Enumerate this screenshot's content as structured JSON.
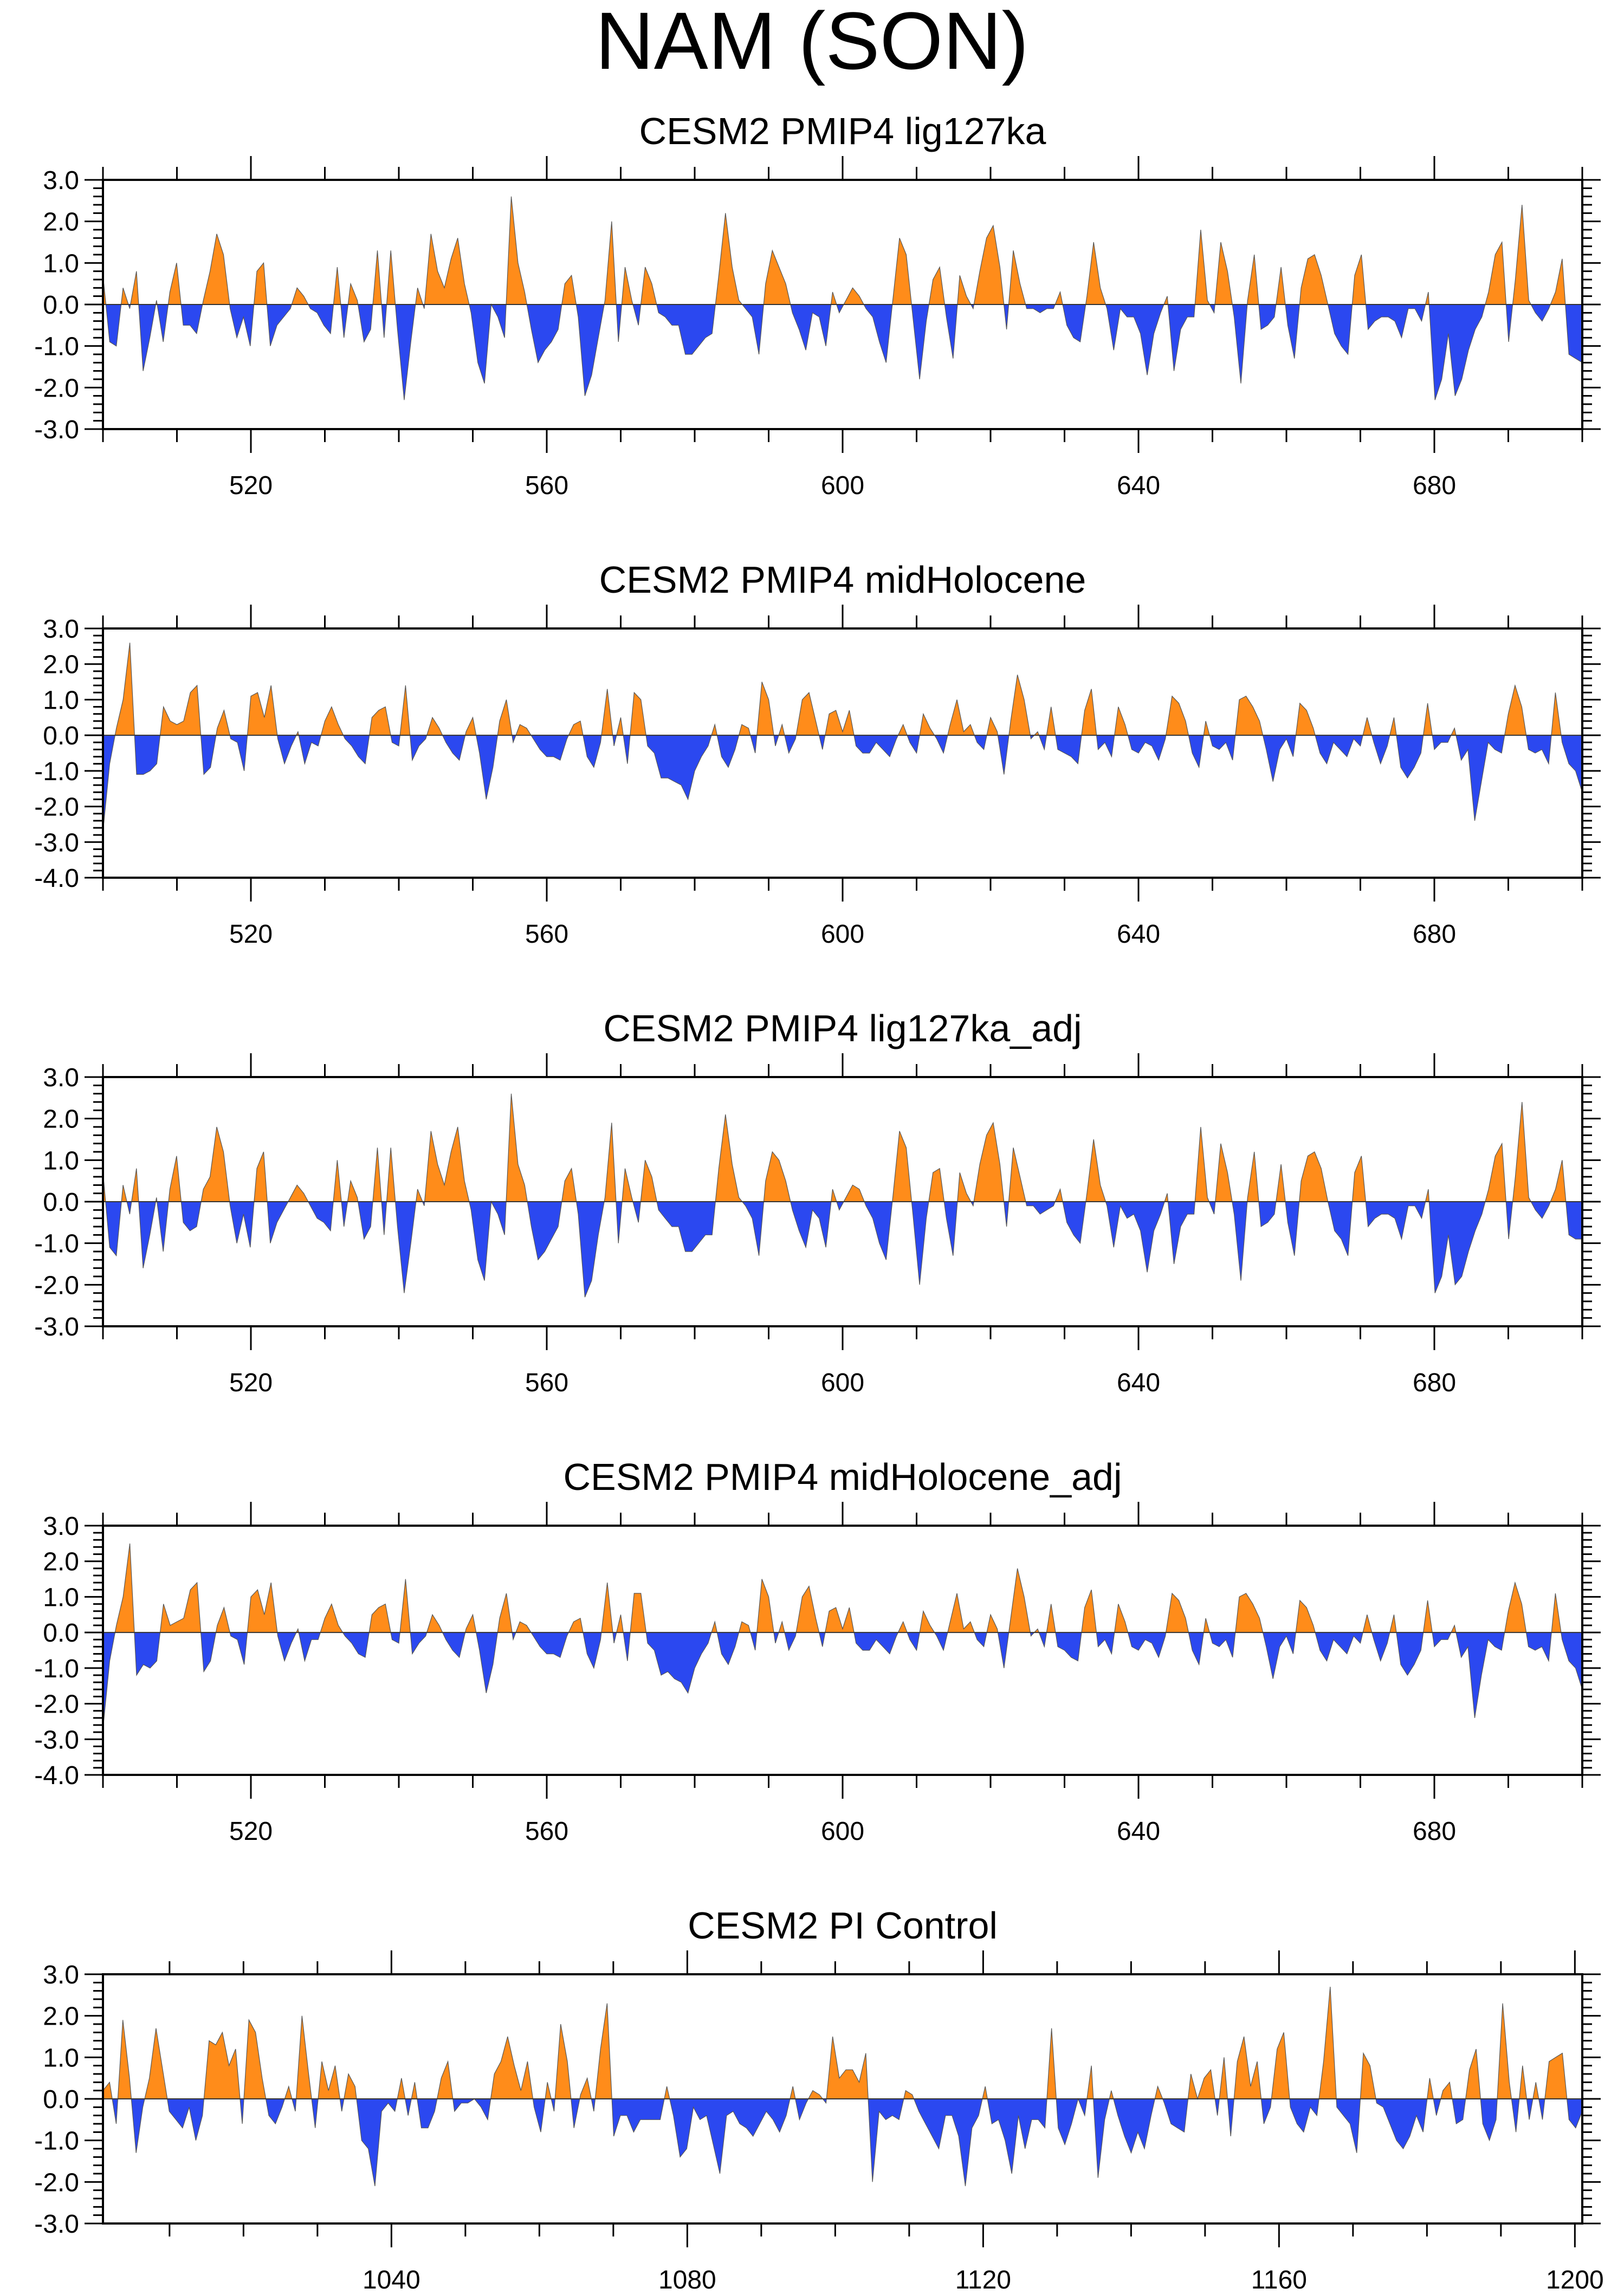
{
  "title": "NAM (SON)",
  "colors": {
    "positive": "#ff8c1a",
    "negative": "#2b48f0",
    "axis": "#000000"
  },
  "chart_data": [
    {
      "type": "area",
      "title": "CESM2 PMIP4 lig127ka",
      "xlim": [
        500,
        700
      ],
      "ylim": [
        -3,
        3
      ],
      "xticks": [
        520,
        560,
        600,
        640,
        680
      ],
      "xtick_labels": [
        "520",
        "560",
        "600",
        "640",
        "680"
      ],
      "yticks": [
        -3,
        -2,
        -1,
        0,
        1,
        2,
        3
      ],
      "ytick_labels": [
        "-3.0",
        "-2.0",
        "-1.0",
        "0.0",
        "1.0",
        "2.0",
        "3.0"
      ],
      "x_start": 500,
      "values": [
        0.7,
        -0.9,
        -1.0,
        0.4,
        -0.1,
        0.8,
        -1.6,
        -0.8,
        0.1,
        -0.9,
        0.3,
        1.0,
        -0.5,
        -0.5,
        -0.7,
        0.1,
        0.8,
        1.7,
        1.2,
        -0.1,
        -0.8,
        -0.3,
        -1.0,
        0.8,
        1.0,
        -1.0,
        -0.5,
        -0.3,
        -0.1,
        0.4,
        0.2,
        -0.1,
        -0.2,
        -0.5,
        -0.7,
        0.9,
        -0.8,
        0.5,
        0.1,
        -0.9,
        -0.6,
        1.3,
        -0.8,
        1.3,
        -0.6,
        -2.3,
        -0.9,
        0.4,
        -0.1,
        1.7,
        0.8,
        0.4,
        1.1,
        1.6,
        0.5,
        -0.2,
        -1.4,
        -1.9,
        0.0,
        -0.3,
        -0.8,
        2.6,
        1.0,
        0.3,
        -0.6,
        -1.4,
        -1.1,
        -0.9,
        -0.6,
        0.5,
        0.7,
        -0.3,
        -2.2,
        -1.7,
        -0.8,
        0.1,
        2.0,
        -0.9,
        0.9,
        0.1,
        -0.5,
        0.9,
        0.5,
        -0.2,
        -0.3,
        -0.5,
        -0.5,
        -1.2,
        -1.2,
        -1.0,
        -0.8,
        -0.7,
        0.7,
        2.2,
        0.9,
        0.1,
        -0.1,
        -0.3,
        -1.2,
        0.5,
        1.3,
        0.9,
        0.5,
        -0.2,
        -0.6,
        -1.1,
        -0.2,
        -0.3,
        -1.0,
        0.3,
        -0.2,
        0.1,
        0.4,
        0.2,
        -0.1,
        -0.3,
        -0.9,
        -1.4,
        0.1,
        1.6,
        1.2,
        -0.3,
        -1.8,
        -0.4,
        0.6,
        0.9,
        -0.3,
        -1.3,
        0.7,
        0.2,
        -0.1,
        0.8,
        1.6,
        1.9,
        0.9,
        -0.6,
        1.3,
        0.5,
        -0.1,
        -0.1,
        -0.2,
        -0.1,
        -0.1,
        0.3,
        -0.5,
        -0.8,
        -0.9,
        0.2,
        1.5,
        0.4,
        -0.1,
        -1.1,
        -0.1,
        -0.3,
        -0.3,
        -0.7,
        -1.7,
        -0.7,
        -0.2,
        0.2,
        -1.6,
        -0.6,
        -0.3,
        -0.3,
        1.8,
        0.1,
        -0.2,
        1.5,
        0.8,
        -0.3,
        -1.9,
        0.1,
        1.2,
        -0.6,
        -0.5,
        -0.3,
        0.9,
        -0.5,
        -1.3,
        0.4,
        1.1,
        1.2,
        0.7,
        0.0,
        -0.7,
        -1.0,
        -1.2,
        0.7,
        1.2,
        -0.6,
        -0.4,
        -0.3,
        -0.3,
        -0.4,
        -0.8,
        -0.1,
        -0.1,
        -0.4,
        0.3,
        -2.3,
        -1.8,
        -0.7,
        -2.2,
        -1.8,
        -1.1,
        -0.6,
        -0.3,
        0.3,
        1.2,
        1.5,
        -0.9,
        0.6,
        2.4,
        0.1,
        -0.2,
        -0.4,
        -0.1,
        0.3,
        1.1,
        -1.2,
        -1.3,
        -1.4
      ]
    },
    {
      "type": "area",
      "title": "CESM2 PMIP4 midHolocene",
      "xlim": [
        500,
        700
      ],
      "ylim": [
        -4,
        3
      ],
      "xticks": [
        520,
        560,
        600,
        640,
        680
      ],
      "xtick_labels": [
        "520",
        "560",
        "600",
        "640",
        "680"
      ],
      "yticks": [
        -4,
        -3,
        -2,
        -1,
        0,
        1,
        2,
        3
      ],
      "ytick_labels": [
        "-4.0",
        "-3.0",
        "-2.0",
        "-1.0",
        "0.0",
        "1.0",
        "2.0",
        "3.0"
      ],
      "x_start": 500,
      "values": [
        -2.7,
        -0.8,
        0.2,
        1.0,
        2.6,
        -1.1,
        -1.1,
        -1.0,
        -0.8,
        0.8,
        0.4,
        0.3,
        0.4,
        1.2,
        1.4,
        -1.1,
        -0.9,
        0.2,
        0.7,
        -0.1,
        -0.2,
        -1.0,
        1.1,
        1.2,
        0.5,
        1.4,
        -0.1,
        -0.8,
        -0.3,
        0.1,
        -0.8,
        -0.2,
        -0.3,
        0.4,
        0.8,
        0.3,
        -0.1,
        -0.3,
        -0.6,
        -0.8,
        0.5,
        0.7,
        0.8,
        -0.2,
        -0.3,
        1.4,
        -0.7,
        -0.3,
        -0.1,
        0.5,
        0.2,
        -0.2,
        -0.5,
        -0.7,
        0.1,
        0.5,
        -0.5,
        -1.8,
        -0.9,
        0.4,
        1.0,
        -0.2,
        0.3,
        0.2,
        -0.1,
        -0.4,
        -0.6,
        -0.6,
        -0.7,
        -0.1,
        0.3,
        0.4,
        -0.6,
        -0.9,
        -0.2,
        1.3,
        -0.3,
        0.5,
        -0.8,
        1.2,
        1.0,
        -0.3,
        -0.5,
        -1.2,
        -1.2,
        -1.3,
        -1.4,
        -1.8,
        -1.0,
        -0.6,
        -0.3,
        0.3,
        -0.6,
        -0.9,
        -0.4,
        0.3,
        0.2,
        -0.5,
        1.5,
        1.0,
        -0.3,
        0.3,
        -0.5,
        -0.1,
        1.0,
        1.2,
        0.4,
        -0.4,
        0.6,
        0.7,
        0.1,
        0.7,
        -0.3,
        -0.5,
        -0.5,
        -0.2,
        -0.4,
        -0.6,
        -0.1,
        0.3,
        -0.2,
        -0.5,
        0.6,
        0.2,
        -0.1,
        -0.5,
        0.3,
        1.0,
        0.1,
        0.3,
        -0.2,
        -0.4,
        0.5,
        0.1,
        -1.1,
        0.4,
        1.7,
        1.0,
        -0.1,
        0.1,
        -0.4,
        0.8,
        -0.4,
        -0.5,
        -0.6,
        -0.8,
        0.7,
        1.3,
        -0.4,
        -0.2,
        -0.6,
        0.8,
        0.3,
        -0.4,
        -0.5,
        -0.2,
        -0.3,
        -0.7,
        -0.1,
        1.1,
        0.9,
        0.4,
        -0.5,
        -0.9,
        0.4,
        -0.3,
        -0.4,
        -0.2,
        -0.7,
        1.0,
        1.1,
        0.8,
        0.4,
        -0.4,
        -1.3,
        -0.4,
        -0.1,
        -0.6,
        0.9,
        0.7,
        0.2,
        -0.5,
        -0.8,
        -0.2,
        -0.4,
        -0.6,
        -0.1,
        -0.3,
        0.5,
        -0.2,
        -0.8,
        -0.3,
        0.5,
        -0.9,
        -1.2,
        -0.9,
        -0.5,
        0.9,
        -0.4,
        -0.2,
        -0.2,
        0.2,
        -0.7,
        -0.4,
        -2.4,
        -1.3,
        -0.2,
        -0.4,
        -0.5,
        0.6,
        1.4,
        0.8,
        -0.4,
        -0.5,
        -0.4,
        -0.8,
        1.2,
        -0.2,
        -0.8,
        -1.0,
        -1.6
      ]
    },
    {
      "type": "area",
      "title": "CESM2 PMIP4 lig127ka_adj",
      "xlim": [
        500,
        700
      ],
      "ylim": [
        -3,
        3
      ],
      "xticks": [
        520,
        560,
        600,
        640,
        680
      ],
      "xtick_labels": [
        "520",
        "560",
        "600",
        "640",
        "680"
      ],
      "yticks": [
        -3,
        -2,
        -1,
        0,
        1,
        2,
        3
      ],
      "ytick_labels": [
        "-3.0",
        "-2.0",
        "-1.0",
        "0.0",
        "1.0",
        "2.0",
        "3.0"
      ],
      "x_start": 500,
      "values": [
        0.7,
        -1.1,
        -1.3,
        0.4,
        -0.3,
        0.8,
        -1.6,
        -0.8,
        0.1,
        -1.2,
        0.3,
        1.1,
        -0.5,
        -0.7,
        -0.6,
        0.3,
        0.6,
        1.8,
        1.2,
        -0.1,
        -1.0,
        -0.3,
        -1.1,
        0.8,
        1.2,
        -1.0,
        -0.5,
        -0.2,
        0.1,
        0.4,
        0.2,
        -0.1,
        -0.4,
        -0.5,
        -0.7,
        1.0,
        -0.6,
        0.5,
        0.1,
        -0.9,
        -0.6,
        1.3,
        -0.8,
        1.3,
        -0.6,
        -2.2,
        -1.0,
        0.3,
        -0.1,
        1.7,
        0.9,
        0.4,
        1.2,
        1.8,
        0.5,
        -0.2,
        -1.4,
        -1.9,
        0.0,
        -0.3,
        -0.8,
        2.6,
        0.9,
        0.4,
        -0.6,
        -1.4,
        -1.2,
        -0.9,
        -0.6,
        0.5,
        0.8,
        -0.3,
        -2.3,
        -1.9,
        -0.8,
        0.1,
        1.9,
        -1.0,
        0.8,
        0.1,
        -0.5,
        1.0,
        0.6,
        -0.2,
        -0.4,
        -0.6,
        -0.6,
        -1.2,
        -1.2,
        -1.0,
        -0.8,
        -0.8,
        0.8,
        2.1,
        0.9,
        0.1,
        -0.1,
        -0.4,
        -1.3,
        0.5,
        1.2,
        1.0,
        0.5,
        -0.2,
        -0.7,
        -1.1,
        -0.2,
        -0.4,
        -1.1,
        0.3,
        -0.2,
        0.1,
        0.4,
        0.3,
        -0.1,
        -0.4,
        -1.0,
        -1.4,
        0.1,
        1.7,
        1.3,
        -0.3,
        -2.0,
        -0.4,
        0.7,
        0.8,
        -0.4,
        -1.3,
        0.7,
        0.2,
        -0.1,
        0.9,
        1.6,
        1.9,
        0.9,
        -0.6,
        1.3,
        0.6,
        -0.1,
        -0.1,
        -0.3,
        -0.2,
        -0.1,
        0.3,
        -0.5,
        -0.8,
        -1.0,
        0.2,
        1.5,
        0.4,
        -0.1,
        -1.1,
        -0.1,
        -0.4,
        -0.3,
        -0.7,
        -1.7,
        -0.7,
        -0.3,
        0.2,
        -1.5,
        -0.6,
        -0.3,
        -0.3,
        1.8,
        0.1,
        -0.3,
        1.4,
        0.7,
        -0.3,
        -1.9,
        0.1,
        1.2,
        -0.6,
        -0.5,
        -0.3,
        0.9,
        -0.5,
        -1.3,
        0.5,
        1.1,
        1.2,
        0.8,
        0.0,
        -0.7,
        -0.9,
        -1.3,
        0.7,
        1.1,
        -0.6,
        -0.4,
        -0.3,
        -0.3,
        -0.4,
        -0.9,
        -0.1,
        -0.1,
        -0.4,
        0.3,
        -2.2,
        -1.8,
        -0.8,
        -2.0,
        -1.8,
        -1.2,
        -0.7,
        -0.3,
        0.3,
        1.1,
        1.4,
        -0.9,
        0.6,
        2.4,
        0.1,
        -0.2,
        -0.4,
        -0.1,
        0.3,
        1.0,
        -0.8,
        -0.9,
        -0.9
      ]
    },
    {
      "type": "area",
      "title": "CESM2 PMIP4 midHolocene_adj",
      "xlim": [
        500,
        700
      ],
      "ylim": [
        -4,
        3
      ],
      "xticks": [
        520,
        560,
        600,
        640,
        680
      ],
      "xtick_labels": [
        "520",
        "560",
        "600",
        "640",
        "680"
      ],
      "yticks": [
        -4,
        -3,
        -2,
        -1,
        0,
        1,
        2,
        3
      ],
      "ytick_labels": [
        "-4.0",
        "-3.0",
        "-2.0",
        "-1.0",
        "0.0",
        "1.0",
        "2.0",
        "3.0"
      ],
      "x_start": 500,
      "values": [
        -2.7,
        -0.8,
        0.2,
        1.0,
        2.5,
        -1.2,
        -0.9,
        -1.0,
        -0.8,
        0.8,
        0.2,
        0.3,
        0.4,
        1.2,
        1.4,
        -1.1,
        -0.8,
        0.2,
        0.7,
        -0.1,
        -0.2,
        -0.9,
        1.0,
        1.2,
        0.5,
        1.4,
        -0.1,
        -0.8,
        -0.3,
        0.1,
        -0.8,
        -0.2,
        -0.2,
        0.4,
        0.8,
        0.2,
        -0.1,
        -0.3,
        -0.6,
        -0.7,
        0.5,
        0.7,
        0.8,
        -0.2,
        -0.3,
        1.5,
        -0.6,
        -0.3,
        -0.1,
        0.5,
        0.2,
        -0.2,
        -0.5,
        -0.7,
        0.1,
        0.5,
        -0.5,
        -1.7,
        -0.9,
        0.4,
        1.1,
        -0.2,
        0.3,
        0.2,
        -0.1,
        -0.4,
        -0.6,
        -0.6,
        -0.7,
        -0.1,
        0.3,
        0.4,
        -0.6,
        -1.0,
        -0.2,
        1.4,
        -0.3,
        0.5,
        -0.8,
        1.1,
        1.1,
        -0.3,
        -0.5,
        -1.2,
        -1.1,
        -1.3,
        -1.4,
        -1.7,
        -1.0,
        -0.6,
        -0.3,
        0.3,
        -0.6,
        -0.9,
        -0.4,
        0.3,
        0.2,
        -0.5,
        1.5,
        1.0,
        -0.3,
        0.3,
        -0.5,
        -0.1,
        1.0,
        1.3,
        0.4,
        -0.4,
        0.6,
        0.7,
        0.1,
        0.7,
        -0.3,
        -0.5,
        -0.5,
        -0.2,
        -0.4,
        -0.6,
        -0.1,
        0.3,
        -0.2,
        -0.5,
        0.6,
        0.2,
        -0.1,
        -0.5,
        0.3,
        1.1,
        0.1,
        0.3,
        -0.2,
        -0.4,
        0.5,
        0.1,
        -1.0,
        0.4,
        1.8,
        1.0,
        -0.1,
        0.1,
        -0.4,
        0.8,
        -0.4,
        -0.5,
        -0.7,
        -0.8,
        0.7,
        1.2,
        -0.4,
        -0.2,
        -0.6,
        0.8,
        0.3,
        -0.4,
        -0.5,
        -0.2,
        -0.3,
        -0.7,
        -0.1,
        1.1,
        0.9,
        0.4,
        -0.5,
        -0.9,
        0.4,
        -0.3,
        -0.4,
        -0.2,
        -0.7,
        1.0,
        1.1,
        0.8,
        0.4,
        -0.4,
        -1.3,
        -0.4,
        -0.1,
        -0.6,
        0.9,
        0.7,
        0.2,
        -0.5,
        -0.8,
        -0.2,
        -0.4,
        -0.6,
        -0.1,
        -0.3,
        0.5,
        -0.2,
        -0.8,
        -0.3,
        0.5,
        -0.9,
        -1.2,
        -0.9,
        -0.5,
        0.9,
        -0.4,
        -0.2,
        -0.2,
        0.2,
        -0.7,
        -0.4,
        -2.4,
        -1.2,
        -0.2,
        -0.4,
        -0.5,
        0.6,
        1.4,
        0.8,
        -0.4,
        -0.5,
        -0.4,
        -0.8,
        1.1,
        -0.2,
        -0.8,
        -1.0,
        -1.6
      ]
    },
    {
      "type": "area",
      "title": "CESM2 PI Control",
      "xlim": [
        1001,
        1201
      ],
      "ylim": [
        -3,
        3
      ],
      "xticks": [
        1040,
        1080,
        1120,
        1160,
        1200
      ],
      "xtick_labels": [
        "1040",
        "1080",
        "1120",
        "1160",
        "1200"
      ],
      "yticks": [
        -3,
        -2,
        -1,
        0,
        1,
        2,
        3
      ],
      "ytick_labels": [
        "-3.0",
        "-2.0",
        "-1.0",
        "0.0",
        "1.0",
        "2.0",
        "3.0"
      ],
      "x_start": 1001,
      "values": [
        0.2,
        0.4,
        -0.6,
        1.9,
        0.5,
        -1.3,
        -0.2,
        0.5,
        1.7,
        0.7,
        -0.3,
        -0.5,
        -0.7,
        -0.2,
        -1.0,
        -0.4,
        1.4,
        1.3,
        1.6,
        0.8,
        1.2,
        -0.6,
        1.9,
        1.6,
        0.5,
        -0.4,
        -0.6,
        -0.2,
        0.3,
        -0.3,
        2.0,
        0.6,
        -0.7,
        0.9,
        0.2,
        0.8,
        -0.3,
        0.6,
        0.3,
        -1.0,
        -1.2,
        -2.1,
        -0.3,
        -0.1,
        -0.3,
        0.5,
        -0.4,
        0.4,
        -0.7,
        -0.7,
        -0.3,
        0.5,
        0.9,
        -0.3,
        -0.1,
        -0.1,
        0.0,
        -0.2,
        -0.5,
        0.6,
        0.9,
        1.5,
        0.8,
        0.2,
        0.9,
        -0.2,
        -0.8,
        0.4,
        -0.3,
        1.8,
        0.9,
        -0.7,
        0.1,
        0.5,
        -0.3,
        1.2,
        2.3,
        -0.9,
        -0.4,
        -0.4,
        -0.8,
        -0.5,
        -0.5,
        -0.5,
        -0.5,
        0.3,
        -0.4,
        -1.4,
        -1.2,
        -0.2,
        -0.5,
        -0.4,
        -1.1,
        -1.8,
        -0.4,
        -0.3,
        -0.6,
        -0.7,
        -0.9,
        -0.6,
        -0.3,
        -0.5,
        -0.8,
        -0.4,
        0.3,
        -0.5,
        -0.1,
        0.2,
        0.1,
        -0.1,
        1.5,
        0.5,
        0.7,
        0.7,
        0.4,
        1.1,
        -2.0,
        -0.3,
        -0.5,
        -0.4,
        -0.5,
        0.2,
        0.1,
        -0.3,
        -0.6,
        -0.9,
        -1.2,
        -0.4,
        -0.4,
        -0.9,
        -2.1,
        -0.7,
        -0.4,
        0.3,
        -0.6,
        -0.5,
        -1.0,
        -1.8,
        -0.4,
        -1.2,
        -0.5,
        -0.5,
        -0.7,
        1.7,
        -0.7,
        -1.1,
        -0.6,
        0.0,
        -0.4,
        0.8,
        -1.9,
        -0.5,
        0.2,
        -0.4,
        -0.9,
        -1.3,
        -0.8,
        -1.2,
        -0.4,
        0.3,
        -0.1,
        -0.6,
        -0.7,
        -0.8,
        0.6,
        0.0,
        0.5,
        0.7,
        -0.4,
        1.0,
        -0.9,
        0.9,
        1.5,
        0.3,
        0.9,
        -0.6,
        -0.2,
        1.2,
        1.6,
        -0.2,
        -0.6,
        -0.8,
        -0.2,
        -0.4,
        0.9,
        2.7,
        -0.2,
        -0.4,
        -0.6,
        -1.3,
        1.1,
        0.8,
        -0.1,
        -0.2,
        -0.6,
        -1.0,
        -1.2,
        -0.9,
        -0.4,
        -0.8,
        0.5,
        -0.4,
        0.2,
        0.4,
        -0.6,
        -0.5,
        0.7,
        1.2,
        -0.6,
        -1.0,
        -0.5,
        2.3,
        0.4,
        -0.8,
        0.8,
        -0.5,
        0.4,
        -0.5,
        0.9,
        1.0,
        1.1,
        -0.5,
        -0.7,
        -0.3
      ]
    }
  ]
}
